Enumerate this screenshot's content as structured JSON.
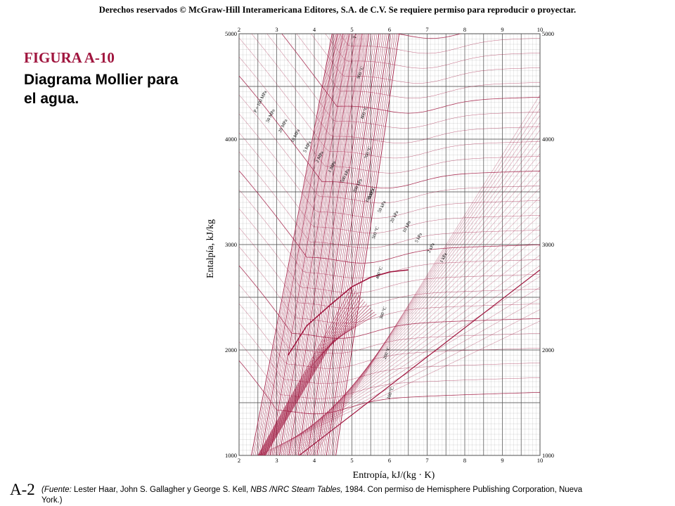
{
  "header": {
    "copyright": "Derechos reservados © McGraw-Hill Interamericana Editores, S.A. de C.V. Se requiere permiso para reproducir o proyectar."
  },
  "figure": {
    "label": "FIGURA A-10",
    "caption": "Diagrama Mollier para el agua."
  },
  "footer": {
    "page_id": "A-2",
    "source_prefix": "(Fuente:",
    "source_authors": " Lester Haar,  John S. Gallagher y George S. Kell, ",
    "source_title": "NBS /NRC Steam Tables,",
    "source_rest": " 1984. Con permiso de Hemisphere Publishing Corporation, Nueva",
    "source_line2": "York.)"
  },
  "chart_data": {
    "type": "line",
    "title": "",
    "xlabel": "Entropía, kJ/(kg · K)",
    "ylabel": "Entalpía, kJ/kg",
    "xlim": [
      2,
      10
    ],
    "ylim": [
      1000,
      5000
    ],
    "x_ticks": [
      2,
      3,
      4,
      5,
      6,
      7,
      8,
      9,
      10
    ],
    "y_ticks": [
      1000,
      2000,
      3000,
      4000,
      5000
    ],
    "grid": true,
    "colors": {
      "curves": "#a0153e",
      "grid": "#888888",
      "grid_major": "#444444"
    },
    "isobar_labels_kPa": [
      "P = 100 MPa",
      "50 MPa",
      "20 MPa",
      "10 MPa",
      "5 MPa",
      "2 MPa",
      "1 MPa",
      "500 kPa",
      "200 kPa",
      "100 kPa",
      "50 kPa",
      "20 kPa",
      "10 kPa",
      "5 kPa",
      "2 kPa",
      "1 kPa"
    ],
    "isotherm_labels": [
      "T = 1000 °C",
      "900 °C",
      "800 °C",
      "700 °C",
      "600 °C",
      "500 °C",
      "400 °C",
      "300 °C",
      "200 °C",
      "100 °C"
    ],
    "saturation_dome": [
      [
        3.3,
        1950
      ],
      [
        3.8,
        2230
      ],
      [
        4.4,
        2420
      ],
      [
        5.0,
        2600
      ],
      [
        5.5,
        2690
      ],
      [
        6.0,
        2740
      ],
      [
        6.5,
        2760
      ]
    ]
  }
}
